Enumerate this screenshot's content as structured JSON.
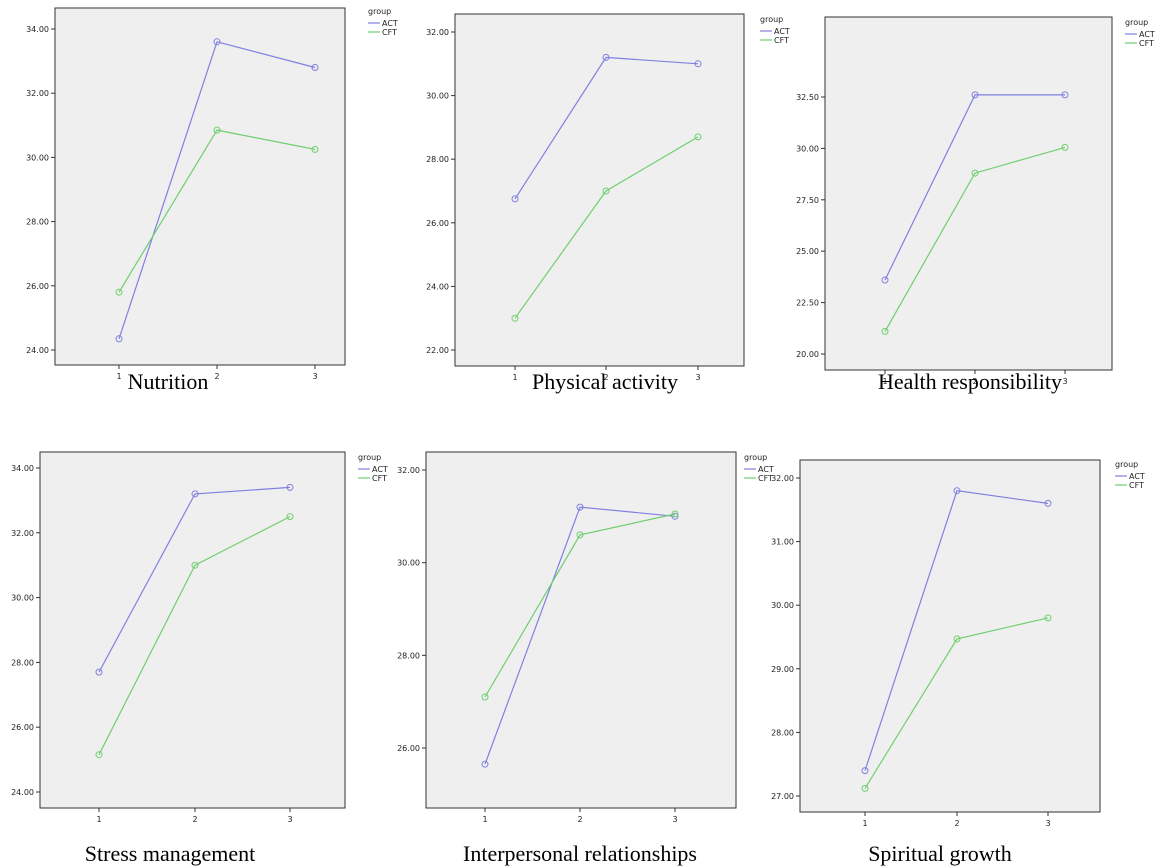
{
  "colors": {
    "ACT": "#8080e0",
    "CFT": "#6fcf6f",
    "plot_background": "#efefef"
  },
  "chart_data": [
    {
      "type": "line",
      "title": "Nutrition",
      "categories": [
        "1",
        "2",
        "3"
      ],
      "legend_title": "group",
      "legend_position": "top-right outside",
      "ylim": [
        24.0,
        34.0
      ],
      "yticks": [
        "24.00",
        "26.00",
        "28.00",
        "30.00",
        "32.00",
        "34.00"
      ],
      "series": [
        {
          "name": "ACT",
          "values": [
            24.35,
            33.6,
            32.8
          ]
        },
        {
          "name": "CFT",
          "values": [
            25.8,
            30.85,
            30.25
          ]
        }
      ]
    },
    {
      "type": "line",
      "title": "Physical activity",
      "categories": [
        "1",
        "2",
        "3"
      ],
      "legend_title": "group",
      "legend_position": "top-right outside",
      "ylim": [
        22.0,
        32.0
      ],
      "yticks": [
        "22.00",
        "24.00",
        "26.00",
        "28.00",
        "30.00",
        "32.00"
      ],
      "series": [
        {
          "name": "ACT",
          "values": [
            26.75,
            31.2,
            31.0
          ]
        },
        {
          "name": "CFT",
          "values": [
            23.0,
            27.0,
            28.7
          ]
        }
      ]
    },
    {
      "type": "line",
      "title": "Health responsibility",
      "categories": [
        "1",
        "2",
        "3"
      ],
      "legend_title": "group",
      "legend_position": "top-right outside",
      "ylim": [
        20.0,
        32.5
      ],
      "yticks": [
        "20.00",
        "22.50",
        "25.00",
        "27.50",
        "30.00",
        "32.50"
      ],
      "series": [
        {
          "name": "ACT",
          "values": [
            23.6,
            32.6,
            32.6
          ]
        },
        {
          "name": "CFT",
          "values": [
            21.1,
            28.8,
            30.05
          ]
        }
      ]
    },
    {
      "type": "line",
      "title": "Stress management",
      "categories": [
        "1",
        "2",
        "3"
      ],
      "legend_title": "group",
      "legend_position": "top-right outside",
      "ylim": [
        24.0,
        34.0
      ],
      "yticks": [
        "24.00",
        "26.00",
        "28.00",
        "30.00",
        "32.00",
        "34.00"
      ],
      "series": [
        {
          "name": "ACT",
          "values": [
            27.7,
            33.2,
            33.4
          ]
        },
        {
          "name": "CFT",
          "values": [
            25.15,
            31.0,
            32.5
          ]
        }
      ]
    },
    {
      "type": "line",
      "title": "Interpersonal relationships",
      "categories": [
        "1",
        "2",
        "3"
      ],
      "legend_title": "group",
      "legend_position": "top-right outside",
      "ylim": [
        26.0,
        32.0
      ],
      "yticks": [
        "26.00",
        "28.00",
        "30.00",
        "32.00"
      ],
      "series": [
        {
          "name": "ACT",
          "values": [
            25.65,
            31.2,
            31.0
          ]
        },
        {
          "name": "CFT",
          "values": [
            27.1,
            30.6,
            31.05
          ]
        }
      ]
    },
    {
      "type": "line",
      "title": "Spiritual growth",
      "categories": [
        "1",
        "2",
        "3"
      ],
      "legend_title": "group",
      "legend_position": "top-right outside",
      "ylim": [
        27.0,
        32.0
      ],
      "yticks": [
        "27.00",
        "28.00",
        "29.00",
        "30.00",
        "31.00",
        "32.00"
      ],
      "series": [
        {
          "name": "ACT",
          "values": [
            27.4,
            31.8,
            31.6
          ]
        },
        {
          "name": "CFT",
          "values": [
            27.12,
            29.47,
            29.8
          ]
        }
      ]
    }
  ]
}
